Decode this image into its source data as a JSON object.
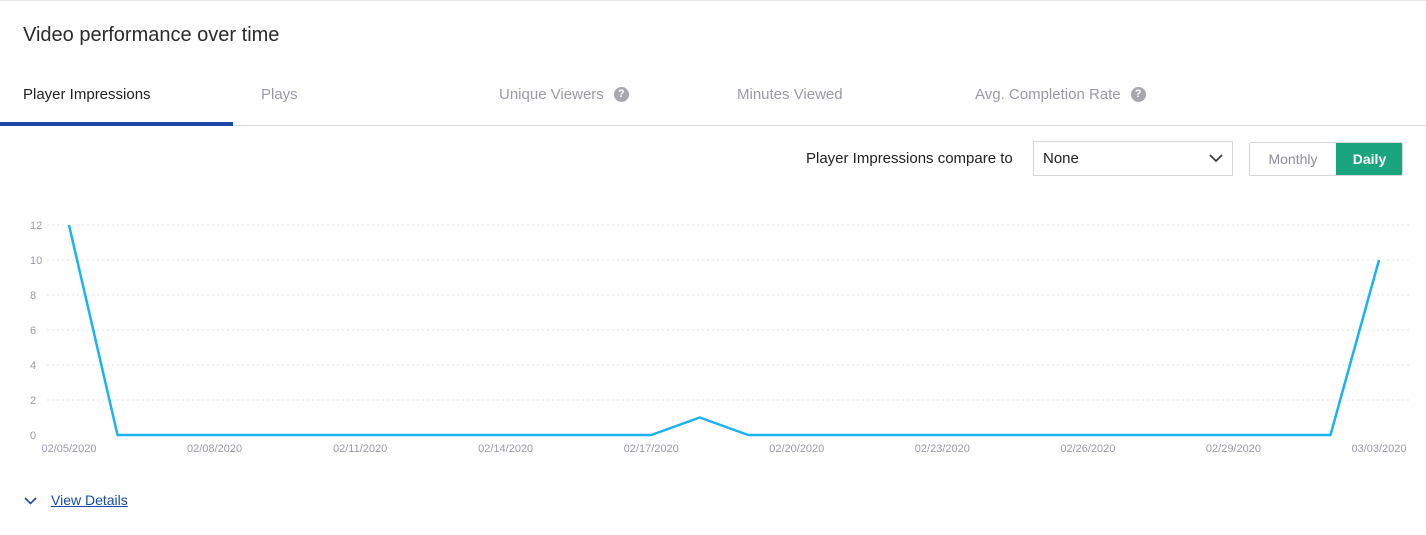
{
  "header": {
    "title": "Video performance over time"
  },
  "tabs": [
    {
      "label": "Player Impressions",
      "active": true,
      "help": false
    },
    {
      "label": "Plays",
      "active": false,
      "help": false
    },
    {
      "label": "Unique Viewers",
      "active": false,
      "help": true
    },
    {
      "label": "Minutes Viewed",
      "active": false,
      "help": false
    },
    {
      "label": "Avg. Completion Rate",
      "active": false,
      "help": true
    }
  ],
  "help_glyph": "?",
  "compare": {
    "label": "Player Impressions compare to",
    "selected": "None",
    "icon": "chevron-down-icon"
  },
  "granularity": {
    "options": [
      "Monthly",
      "Daily"
    ],
    "selected": "Daily"
  },
  "colors": {
    "accent": "#1a47a8",
    "line": "#1ab3ef",
    "toggle_active": "#1aa57f",
    "axis_text": "#9a9aa6"
  },
  "chart_data": {
    "type": "line",
    "title": "",
    "xlabel": "",
    "ylabel": "",
    "ylim": [
      0,
      12
    ],
    "yticks": [
      0,
      2,
      4,
      6,
      8,
      10,
      12
    ],
    "grid": true,
    "x": [
      "02/05/2020",
      "02/06/2020",
      "02/07/2020",
      "02/08/2020",
      "02/09/2020",
      "02/10/2020",
      "02/11/2020",
      "02/12/2020",
      "02/13/2020",
      "02/14/2020",
      "02/15/2020",
      "02/16/2020",
      "02/17/2020",
      "02/18/2020",
      "02/19/2020",
      "02/20/2020",
      "02/21/2020",
      "02/22/2020",
      "02/23/2020",
      "02/24/2020",
      "02/25/2020",
      "02/26/2020",
      "02/27/2020",
      "02/28/2020",
      "02/29/2020",
      "03/01/2020",
      "03/02/2020",
      "03/03/2020"
    ],
    "xtick_labels": [
      "02/05/2020",
      "02/08/2020",
      "02/11/2020",
      "02/14/2020",
      "02/17/2020",
      "02/20/2020",
      "02/23/2020",
      "02/26/2020",
      "02/29/2020",
      "03/03/2020"
    ],
    "series": [
      {
        "values": [
          12,
          0,
          0,
          0,
          0,
          0,
          0,
          0,
          0,
          0,
          0,
          0,
          0,
          1,
          0,
          0,
          0,
          0,
          0,
          0,
          0,
          0,
          0,
          0,
          0,
          0,
          0,
          10
        ]
      }
    ]
  },
  "footer": {
    "details_label": "View Details",
    "icon": "chevron-down-icon"
  }
}
